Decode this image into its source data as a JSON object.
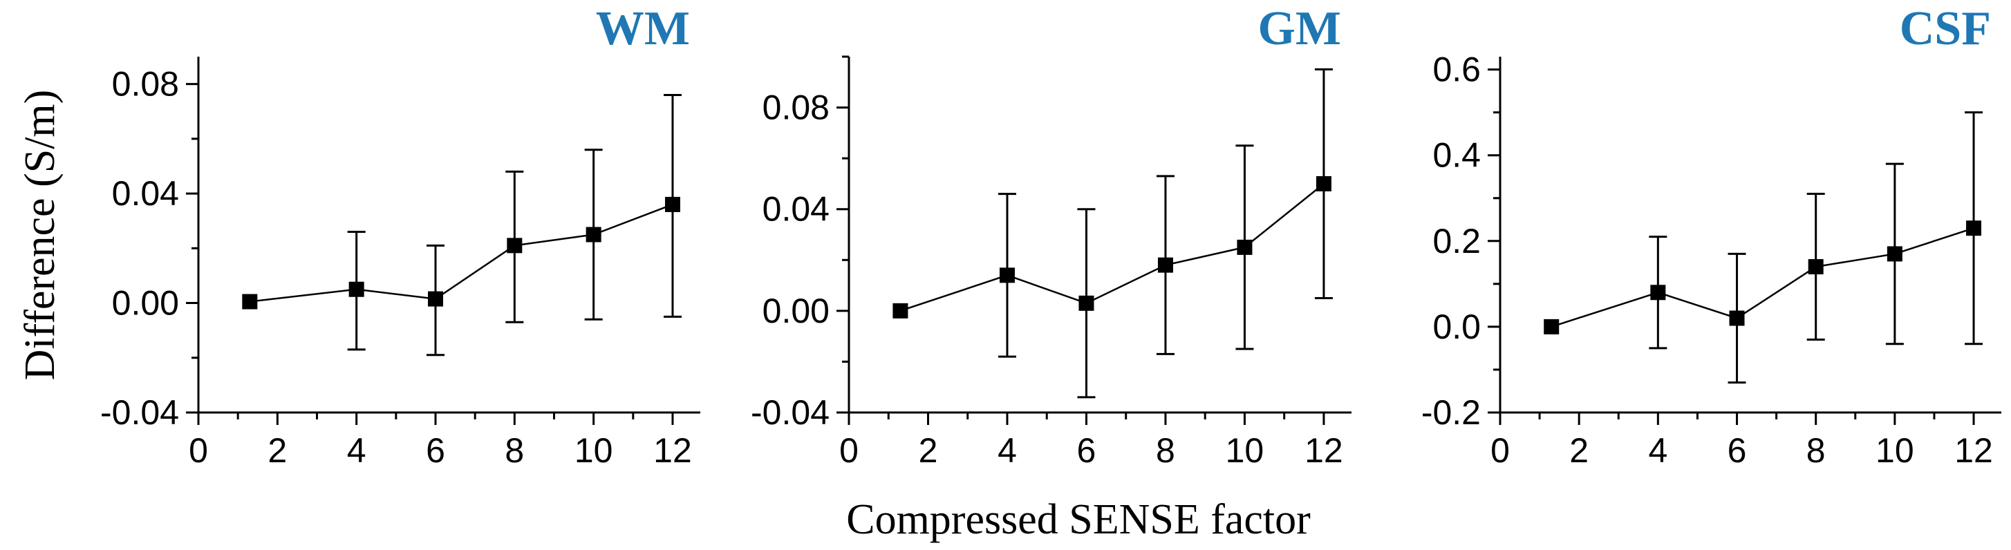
{
  "figure": {
    "ylabel": "Difference (S/m)",
    "xlabel": "Compressed SENSE factor",
    "title_color": "#1f77b4"
  },
  "chart_data": [
    {
      "type": "scatter",
      "title": "WM",
      "x": [
        1.3,
        4,
        6,
        8,
        10,
        12
      ],
      "y": [
        0.0005,
        0.005,
        0.0015,
        0.021,
        0.025,
        0.036
      ],
      "yerr_low": [
        null,
        -0.017,
        -0.019,
        -0.007,
        -0.006,
        -0.005
      ],
      "yerr_high": [
        null,
        0.026,
        0.021,
        0.048,
        0.056,
        0.076
      ],
      "xlim": [
        0,
        12.7
      ],
      "ylim": [
        -0.04,
        0.09
      ],
      "xticks": [
        0,
        2,
        4,
        6,
        8,
        10,
        12
      ],
      "xtick_labels": [
        "0",
        "2",
        "4",
        "6",
        "8",
        "10",
        "12"
      ],
      "yticks": [
        -0.04,
        0,
        0.04,
        0.08
      ],
      "ytick_labels": [
        "-0.04",
        "0.00",
        "0.04",
        "0.08"
      ]
    },
    {
      "type": "scatter",
      "title": "GM",
      "x": [
        1.3,
        4,
        6,
        8,
        10,
        12
      ],
      "y": [
        0.0,
        0.014,
        0.003,
        0.018,
        0.025,
        0.05
      ],
      "yerr_low": [
        null,
        -0.018,
        -0.034,
        -0.017,
        -0.015,
        0.005
      ],
      "yerr_high": [
        null,
        0.046,
        0.04,
        0.053,
        0.065,
        0.095
      ],
      "xlim": [
        0,
        12.7
      ],
      "ylim": [
        -0.04,
        0.1
      ],
      "xticks": [
        0,
        2,
        4,
        6,
        8,
        10,
        12
      ],
      "xtick_labels": [
        "0",
        "2",
        "4",
        "6",
        "8",
        "10",
        "12"
      ],
      "yticks": [
        -0.04,
        0,
        0.04,
        0.08
      ],
      "ytick_labels": [
        "-0.04",
        "0.00",
        "0.04",
        "0.08"
      ]
    },
    {
      "type": "scatter",
      "title": "CSF",
      "x": [
        1.3,
        4,
        6,
        8,
        10,
        12
      ],
      "y": [
        0.0,
        0.08,
        0.02,
        0.14,
        0.17,
        0.23
      ],
      "yerr_low": [
        null,
        -0.05,
        -0.13,
        -0.03,
        -0.04,
        -0.04
      ],
      "yerr_high": [
        null,
        0.21,
        0.17,
        0.31,
        0.38,
        0.5
      ],
      "xlim": [
        0,
        12.7
      ],
      "ylim": [
        -0.2,
        0.63
      ],
      "xticks": [
        0,
        2,
        4,
        6,
        8,
        10,
        12
      ],
      "xtick_labels": [
        "0",
        "2",
        "4",
        "6",
        "8",
        "10",
        "12"
      ],
      "yticks": [
        -0.2,
        0,
        0.2,
        0.4,
        0.6
      ],
      "ytick_labels": [
        "-0.2",
        "0.0",
        "0.2",
        "0.4",
        "0.6"
      ]
    }
  ]
}
